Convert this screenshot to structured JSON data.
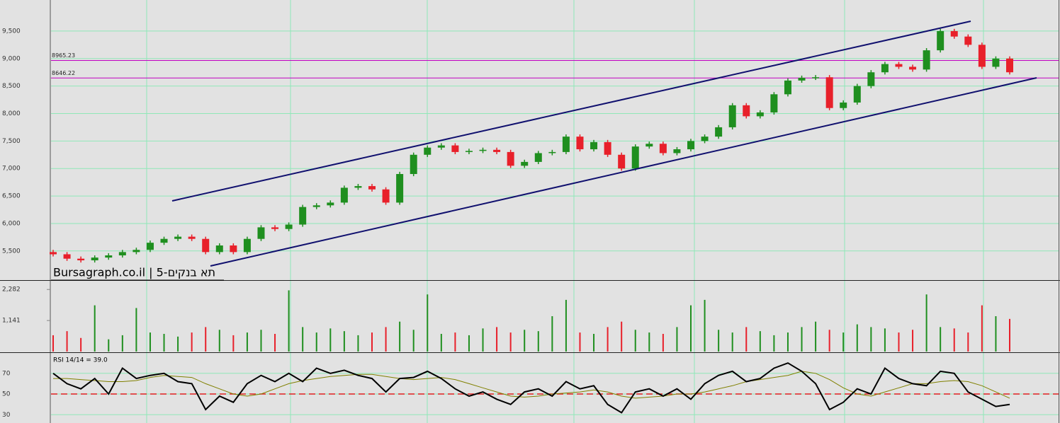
{
  "chart_data": [
    {
      "type": "candlestick",
      "title": "Bursagraph.co.il | תא בנקים-5",
      "open": [
        5480,
        5440,
        5360,
        5330,
        5380,
        5420,
        5480,
        5520,
        5650,
        5720,
        5760,
        5720,
        5480,
        5600,
        5480,
        5720,
        5930,
        5900,
        5980,
        6300,
        6330,
        6380,
        6650,
        6680,
        6620,
        6380,
        6900,
        7250,
        7380,
        7420,
        7300,
        7320,
        7340,
        7300,
        7050,
        7120,
        7280,
        7300,
        7580,
        7350,
        7480,
        7250,
        7000,
        7400,
        7450,
        7280,
        7350,
        7500,
        7580,
        7750,
        8150,
        7950,
        8020,
        8350,
        8600,
        8650,
        8660,
        8100,
        8200,
        8500,
        8750,
        8900,
        8850,
        8800,
        9150,
        9500,
        9400,
        9250,
        8850,
        9000
      ],
      "high": [
        5520,
        5480,
        5400,
        5420,
        5460,
        5520,
        5560,
        5690,
        5760,
        5800,
        5800,
        5760,
        5640,
        5640,
        5760,
        5970,
        5970,
        6020,
        6340,
        6370,
        6420,
        6690,
        6720,
        6720,
        6660,
        6940,
        7290,
        7420,
        7460,
        7460,
        7360,
        7380,
        7380,
        7340,
        7160,
        7320,
        7340,
        7620,
        7620,
        7520,
        7520,
        7290,
        7440,
        7490,
        7490,
        7390,
        7540,
        7620,
        7790,
        8190,
        8190,
        8060,
        8390,
        8640,
        8690,
        8700,
        8700,
        8240,
        8540,
        8790,
        8940,
        8940,
        8890,
        9190,
        9540,
        9540,
        9440,
        9290,
        9040,
        9040
      ],
      "low": [
        5400,
        5320,
        5290,
        5290,
        5340,
        5380,
        5440,
        5480,
        5610,
        5680,
        5680,
        5440,
        5440,
        5440,
        5440,
        5680,
        5860,
        5860,
        5940,
        6260,
        6290,
        6340,
        6610,
        6580,
        6340,
        6340,
        6860,
        7210,
        7340,
        7260,
        7260,
        7280,
        7260,
        7010,
        7010,
        7080,
        7240,
        7260,
        7310,
        7310,
        7210,
        6960,
        6960,
        7360,
        7240,
        7240,
        7310,
        7460,
        7540,
        7710,
        7910,
        7910,
        7980,
        8310,
        8560,
        8610,
        8060,
        8060,
        8160,
        8460,
        8710,
        8810,
        8760,
        8760,
        9110,
        9360,
        9210,
        8810,
        8810,
        8710
      ],
      "close": [
        5440,
        5360,
        5330,
        5380,
        5420,
        5480,
        5520,
        5650,
        5720,
        5760,
        5720,
        5480,
        5600,
        5480,
        5720,
        5930,
        5900,
        5980,
        6300,
        6330,
        6380,
        6650,
        6680,
        6620,
        6380,
        6900,
        7250,
        7380,
        7420,
        7300,
        7320,
        7340,
        7300,
        7050,
        7120,
        7280,
        7300,
        7580,
        7350,
        7480,
        7250,
        7000,
        7400,
        7450,
        7280,
        7350,
        7500,
        7580,
        7750,
        8150,
        7950,
        8020,
        8350,
        8600,
        8650,
        8660,
        8100,
        8200,
        8500,
        8750,
        8900,
        8850,
        8800,
        9150,
        9500,
        9400,
        9250,
        8850,
        9000,
        8750
      ],
      "up_color": "#1f8f1f",
      "down_color": "#e8202a",
      "ylim": [
        4970,
        10065
      ],
      "yticks": [
        {
          "value": 5500,
          "label": "5,500"
        },
        {
          "value": 6000,
          "label": "6,000"
        },
        {
          "value": 6500,
          "label": "6,500"
        },
        {
          "value": 7000,
          "label": "7,000"
        },
        {
          "value": 7500,
          "label": "7,500"
        },
        {
          "value": 8000,
          "label": "8,000"
        },
        {
          "value": 8500,
          "label": "8,500"
        },
        {
          "value": 9000,
          "label": "9,000"
        },
        {
          "value": 9500,
          "label": "9,500"
        }
      ],
      "grid": true,
      "hlines": [
        8965.23,
        8646.22
      ],
      "hline_color": "#c000c0"
    },
    {
      "type": "bar",
      "values": [
        600,
        750,
        500,
        1700,
        450,
        600,
        1600,
        700,
        650,
        550,
        700,
        900,
        800,
        600,
        700,
        800,
        650,
        2250,
        900,
        700,
        850,
        750,
        600,
        700,
        900,
        1100,
        800,
        2100,
        650,
        700,
        600,
        850,
        900,
        700,
        800,
        750,
        1300,
        1900,
        700,
        650,
        900,
        1100,
        800,
        700,
        650,
        900,
        1700,
        1900,
        800,
        700,
        900,
        750,
        600,
        700,
        900,
        1100,
        800,
        700,
        1000,
        900,
        850,
        700,
        800,
        2100,
        900,
        850,
        700,
        1700,
        1300,
        1200
      ],
      "ylim": [
        0,
        2600
      ],
      "yticks": [
        {
          "value": 2282,
          "label": "2,282"
        },
        {
          "value": 1141,
          "label": "1,141"
        }
      ],
      "grid": false
    },
    {
      "type": "line",
      "title": "RSI 14/14 = 39.0",
      "series": [
        {
          "color": "#000000",
          "values": [
            70,
            60,
            55,
            65,
            50,
            75,
            65,
            68,
            70,
            62,
            60,
            35,
            48,
            42,
            60,
            68,
            62,
            70,
            62,
            75,
            70,
            73,
            68,
            65,
            52,
            65,
            66,
            72,
            65,
            55,
            48,
            52,
            45,
            40,
            52,
            55,
            48,
            62,
            55,
            58,
            40,
            32,
            52,
            55,
            48,
            55,
            45,
            60,
            68,
            72,
            62,
            65,
            75,
            80,
            72,
            60,
            35,
            42,
            55,
            50,
            75,
            65,
            60,
            58,
            72,
            70,
            52,
            45,
            38,
            40
          ]
        },
        {
          "color": "#808000",
          "values": [
            65,
            65,
            64,
            63,
            62,
            62,
            63,
            66,
            68,
            67,
            66,
            60,
            55,
            50,
            48,
            50,
            55,
            60,
            63,
            65,
            67,
            68,
            69,
            69,
            67,
            65,
            64,
            65,
            66,
            64,
            60,
            56,
            52,
            48,
            47,
            48,
            50,
            51,
            52,
            54,
            52,
            48,
            46,
            47,
            48,
            50,
            50,
            52,
            55,
            58,
            62,
            64,
            66,
            68,
            72,
            70,
            64,
            56,
            50,
            48,
            52,
            56,
            60,
            60,
            62,
            63,
            62,
            58,
            52,
            46
          ]
        }
      ],
      "ylim": [
        22,
        89
      ],
      "yticks": [
        30,
        50,
        70
      ],
      "grid": true,
      "reference_line": 50,
      "reference_color": "#e02020"
    }
  ]
}
